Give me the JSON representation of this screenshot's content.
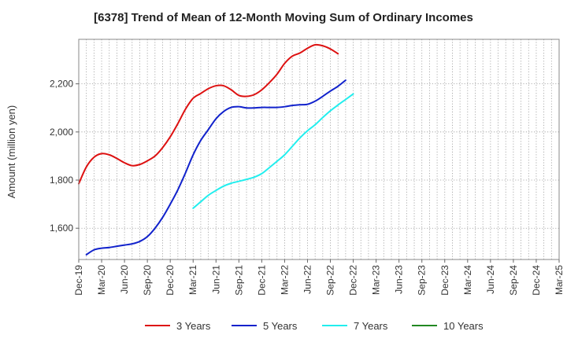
{
  "chart_data": {
    "type": "line",
    "title": "[6378]  Trend of Mean of 12-Month Moving Sum of Ordinary Incomes",
    "xlabel": "",
    "ylabel": "Amount (million yen)",
    "ylim": [
      1470,
      2385
    ],
    "yticks": [
      1600,
      1800,
      2000,
      2200
    ],
    "ytick_labels": [
      "1,600",
      "1,800",
      "2,000",
      "2,200"
    ],
    "x_categories": [
      "Dec-19",
      "Mar-20",
      "Jun-20",
      "Sep-20",
      "Dec-20",
      "Mar-21",
      "Jun-21",
      "Sep-21",
      "Dec-21",
      "Mar-22",
      "Jun-22",
      "Sep-22",
      "Dec-22",
      "Mar-23",
      "Jun-23",
      "Sep-23",
      "Dec-23",
      "Mar-24",
      "Jun-24",
      "Sep-24",
      "Dec-24",
      "Mar-25"
    ],
    "grid": true,
    "legend_position": "bottom",
    "series": [
      {
        "name": "3 Years",
        "color": "#dd1111",
        "points": [
          [
            0,
            1785
          ],
          [
            1,
            1855
          ],
          [
            2,
            1895
          ],
          [
            3,
            1910
          ],
          [
            4,
            1905
          ],
          [
            5,
            1890
          ],
          [
            6,
            1872
          ],
          [
            7,
            1860
          ],
          [
            8,
            1865
          ],
          [
            9,
            1880
          ],
          [
            10,
            1900
          ],
          [
            11,
            1935
          ],
          [
            12,
            1980
          ],
          [
            13,
            2035
          ],
          [
            14,
            2095
          ],
          [
            15,
            2140
          ],
          [
            16,
            2160
          ],
          [
            17,
            2180
          ],
          [
            18,
            2192
          ],
          [
            19,
            2192
          ],
          [
            20,
            2175
          ],
          [
            21,
            2152
          ],
          [
            22,
            2148
          ],
          [
            23,
            2155
          ],
          [
            24,
            2175
          ],
          [
            25,
            2205
          ],
          [
            26,
            2240
          ],
          [
            27,
            2285
          ],
          [
            28,
            2315
          ],
          [
            29,
            2328
          ],
          [
            30,
            2348
          ],
          [
            31,
            2362
          ],
          [
            32,
            2358
          ],
          [
            33,
            2345
          ],
          [
            34,
            2325
          ]
        ]
      },
      {
        "name": "5 Years",
        "color": "#1122cc",
        "points": [
          [
            1,
            1490
          ],
          [
            2,
            1510
          ],
          [
            3,
            1517
          ],
          [
            4,
            1520
          ],
          [
            5,
            1525
          ],
          [
            6,
            1530
          ],
          [
            7,
            1535
          ],
          [
            8,
            1545
          ],
          [
            9,
            1565
          ],
          [
            10,
            1600
          ],
          [
            11,
            1645
          ],
          [
            12,
            1700
          ],
          [
            13,
            1760
          ],
          [
            14,
            1830
          ],
          [
            15,
            1905
          ],
          [
            16,
            1965
          ],
          [
            17,
            2010
          ],
          [
            18,
            2055
          ],
          [
            19,
            2085
          ],
          [
            20,
            2102
          ],
          [
            21,
            2105
          ],
          [
            22,
            2100
          ],
          [
            23,
            2100
          ],
          [
            24,
            2102
          ],
          [
            25,
            2102
          ],
          [
            26,
            2102
          ],
          [
            27,
            2105
          ],
          [
            28,
            2110
          ],
          [
            29,
            2113
          ],
          [
            30,
            2115
          ],
          [
            31,
            2128
          ],
          [
            32,
            2148
          ],
          [
            33,
            2170
          ],
          [
            34,
            2190
          ],
          [
            35,
            2215
          ]
        ]
      },
      {
        "name": "7 Years",
        "color": "#22eeee",
        "points": [
          [
            15,
            1683
          ],
          [
            16,
            1710
          ],
          [
            17,
            1737
          ],
          [
            18,
            1757
          ],
          [
            19,
            1775
          ],
          [
            20,
            1787
          ],
          [
            21,
            1795
          ],
          [
            22,
            1803
          ],
          [
            23,
            1812
          ],
          [
            24,
            1827
          ],
          [
            25,
            1852
          ],
          [
            26,
            1878
          ],
          [
            27,
            1905
          ],
          [
            28,
            1940
          ],
          [
            29,
            1975
          ],
          [
            30,
            2005
          ],
          [
            31,
            2030
          ],
          [
            32,
            2060
          ],
          [
            33,
            2088
          ],
          [
            34,
            2112
          ],
          [
            35,
            2135
          ],
          [
            36,
            2158
          ]
        ]
      },
      {
        "name": "10 Years",
        "color": "#228822",
        "points": []
      }
    ]
  }
}
